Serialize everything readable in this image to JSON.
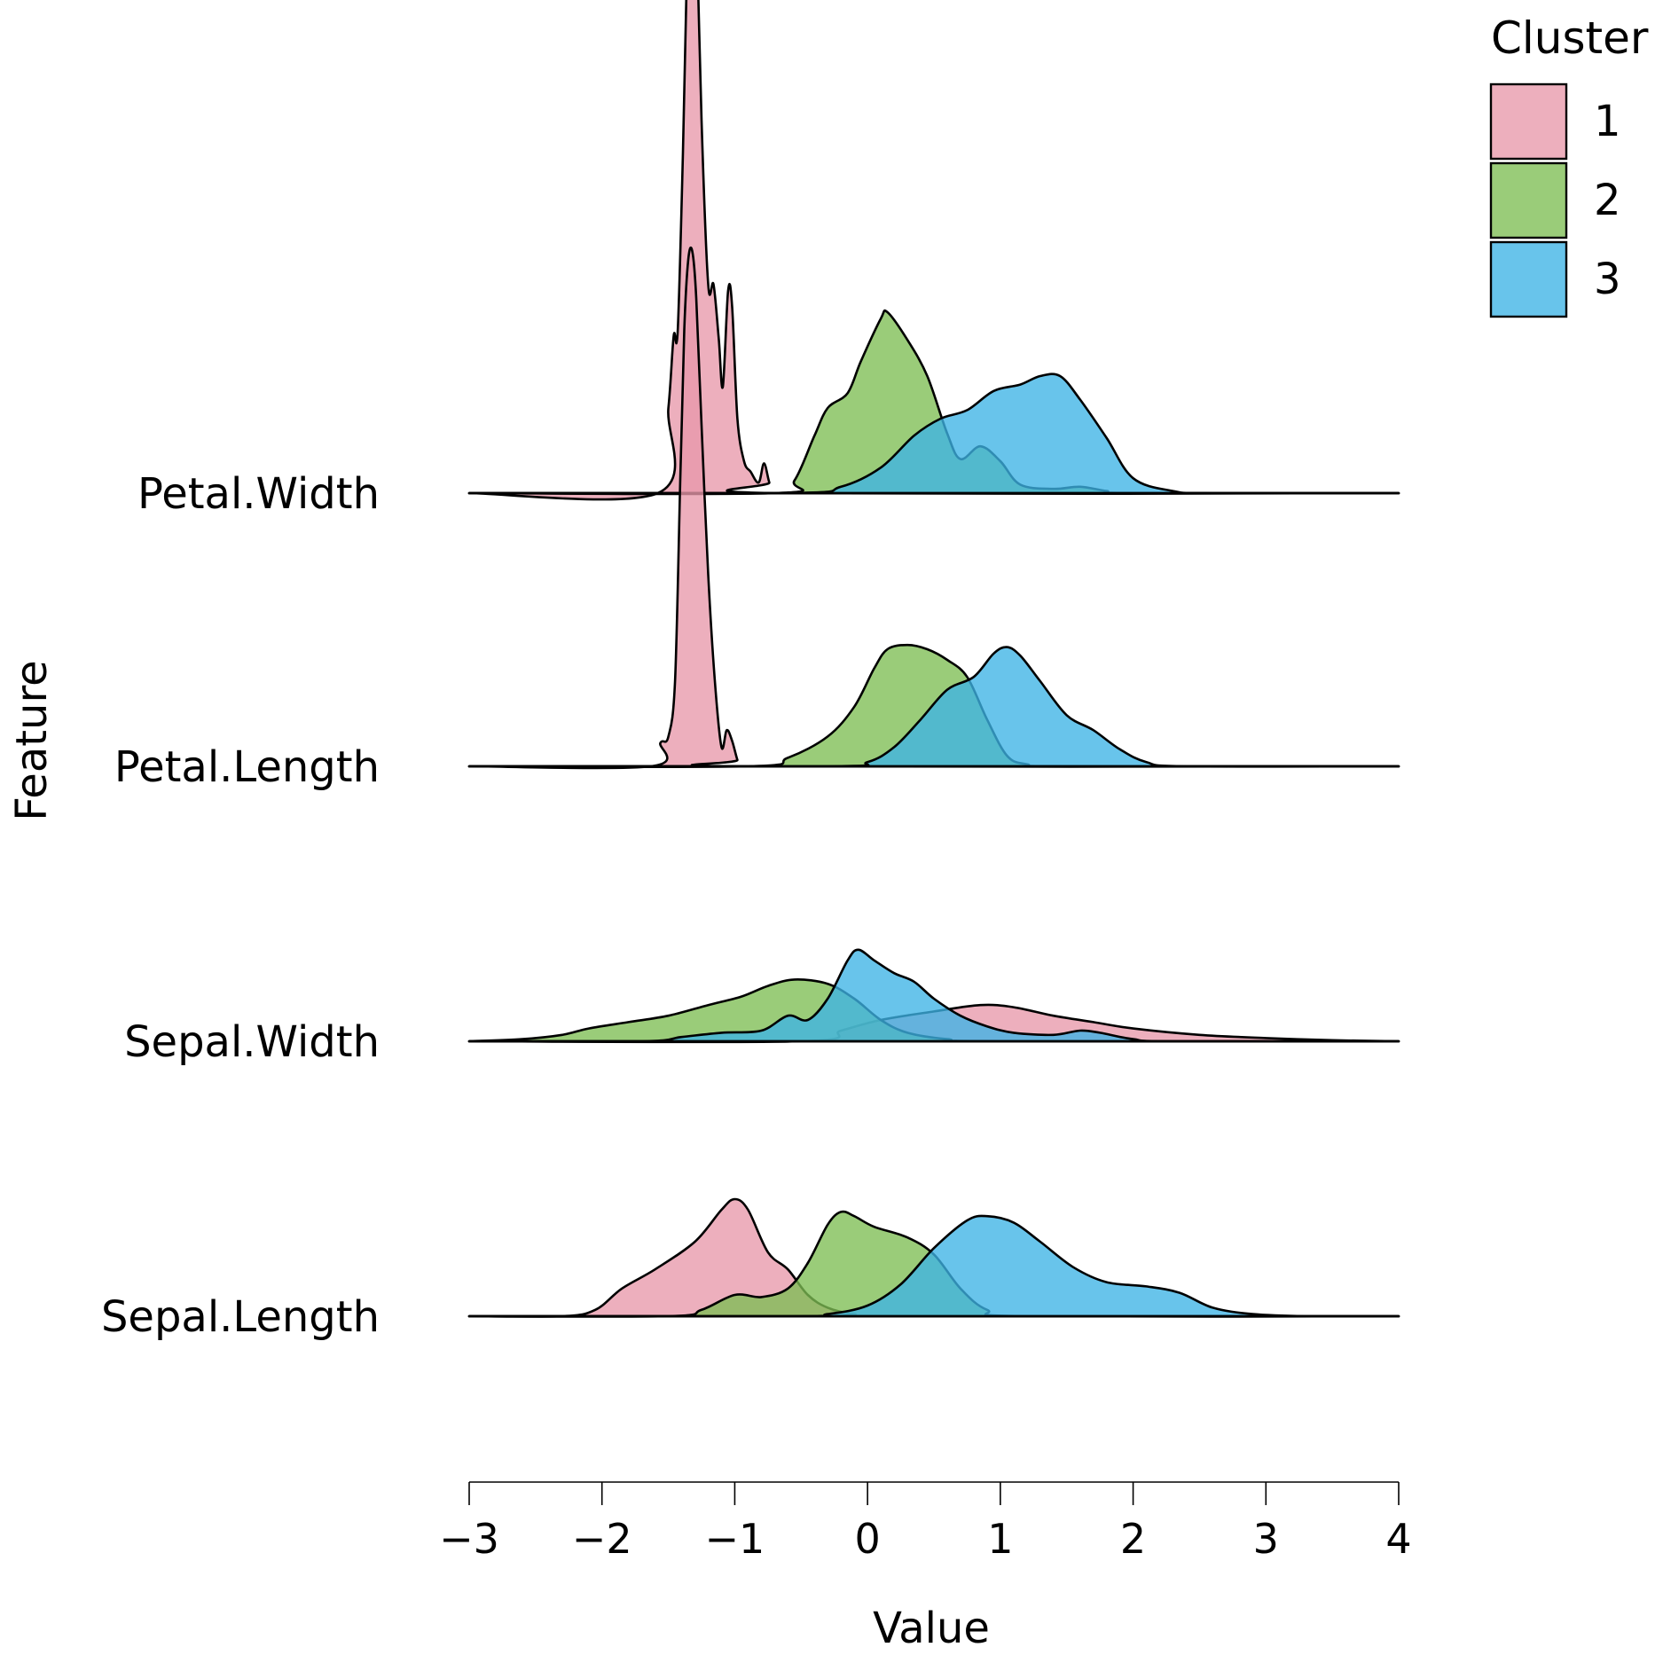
{
  "chart_data": {
    "type": "ridgeline",
    "xlabel": "Value",
    "ylabel": "Feature",
    "xlim": [
      -3,
      4
    ],
    "x_ticks": [
      -3,
      -2,
      -1,
      0,
      1,
      2,
      3,
      4
    ],
    "x_tick_labels": [
      "−3",
      "−2",
      "−1",
      "0",
      "1",
      "2",
      "3",
      "4"
    ],
    "legend": {
      "title": "Cluster",
      "position": "top-right",
      "entries": [
        {
          "label": "1",
          "color": "#E899AB"
        },
        {
          "label": "2",
          "color": "#7DBE53"
        },
        {
          "label": "3",
          "color": "#3EB4E6"
        }
      ]
    },
    "features": [
      {
        "name": "Sepal.Length",
        "series": [
          {
            "cluster": "1",
            "points": [
              [
                -3.0,
                0
              ],
              [
                -2.3,
                0
              ],
              [
                -2.05,
                0.03
              ],
              [
                -1.85,
                0.13
              ],
              [
                -1.6,
                0.22
              ],
              [
                -1.3,
                0.35
              ],
              [
                -1.1,
                0.5
              ],
              [
                -1.0,
                0.55
              ],
              [
                -0.9,
                0.5
              ],
              [
                -0.75,
                0.3
              ],
              [
                -0.6,
                0.22
              ],
              [
                -0.45,
                0.1
              ],
              [
                -0.3,
                0.04
              ],
              [
                -0.1,
                0.01
              ],
              [
                0.2,
                0
              ],
              [
                4.0,
                0
              ]
            ]
          },
          {
            "cluster": "2",
            "points": [
              [
                -3.0,
                0
              ],
              [
                -1.5,
                0
              ],
              [
                -1.25,
                0.03
              ],
              [
                -1.0,
                0.1
              ],
              [
                -0.8,
                0.09
              ],
              [
                -0.6,
                0.13
              ],
              [
                -0.45,
                0.25
              ],
              [
                -0.3,
                0.43
              ],
              [
                -0.2,
                0.49
              ],
              [
                -0.1,
                0.47
              ],
              [
                0.05,
                0.42
              ],
              [
                0.3,
                0.37
              ],
              [
                0.5,
                0.29
              ],
              [
                0.7,
                0.13
              ],
              [
                0.9,
                0.03
              ],
              [
                1.2,
                0
              ],
              [
                4.0,
                0
              ]
            ]
          },
          {
            "cluster": "3",
            "points": [
              [
                -3.0,
                0
              ],
              [
                -0.6,
                0
              ],
              [
                -0.3,
                0.01
              ],
              [
                0.0,
                0.05
              ],
              [
                0.25,
                0.15
              ],
              [
                0.5,
                0.32
              ],
              [
                0.75,
                0.45
              ],
              [
                0.9,
                0.47
              ],
              [
                1.1,
                0.44
              ],
              [
                1.3,
                0.35
              ],
              [
                1.55,
                0.23
              ],
              [
                1.8,
                0.16
              ],
              [
                2.1,
                0.14
              ],
              [
                2.35,
                0.11
              ],
              [
                2.6,
                0.04
              ],
              [
                2.9,
                0.01
              ],
              [
                3.3,
                0
              ],
              [
                4.0,
                0
              ]
            ]
          }
        ]
      },
      {
        "name": "Sepal.Width",
        "series": [
          {
            "cluster": "1",
            "points": [
              [
                -3.0,
                0
              ],
              [
                -0.5,
                0
              ],
              [
                -0.2,
                0.05
              ],
              [
                0.1,
                0.1
              ],
              [
                0.5,
                0.14
              ],
              [
                0.85,
                0.17
              ],
              [
                1.1,
                0.16
              ],
              [
                1.4,
                0.12
              ],
              [
                1.7,
                0.09
              ],
              [
                2.0,
                0.06
              ],
              [
                2.5,
                0.03
              ],
              [
                3.0,
                0.015
              ],
              [
                3.5,
                0.005
              ],
              [
                4.0,
                0
              ]
            ]
          },
          {
            "cluster": "2",
            "points": [
              [
                -3.0,
                0
              ],
              [
                -2.6,
                0.01
              ],
              [
                -2.3,
                0.03
              ],
              [
                -2.1,
                0.06
              ],
              [
                -1.8,
                0.09
              ],
              [
                -1.5,
                0.12
              ],
              [
                -1.2,
                0.17
              ],
              [
                -0.95,
                0.21
              ],
              [
                -0.75,
                0.26
              ],
              [
                -0.55,
                0.29
              ],
              [
                -0.3,
                0.27
              ],
              [
                -0.1,
                0.2
              ],
              [
                0.1,
                0.1
              ],
              [
                0.3,
                0.04
              ],
              [
                0.6,
                0.01
              ],
              [
                1.0,
                0
              ],
              [
                4.0,
                0
              ]
            ]
          },
          {
            "cluster": "3",
            "points": [
              [
                -3.0,
                0
              ],
              [
                -1.7,
                0
              ],
              [
                -1.4,
                0.02
              ],
              [
                -1.1,
                0.04
              ],
              [
                -0.8,
                0.05
              ],
              [
                -0.6,
                0.12
              ],
              [
                -0.45,
                0.1
              ],
              [
                -0.3,
                0.2
              ],
              [
                -0.15,
                0.38
              ],
              [
                -0.07,
                0.43
              ],
              [
                0.05,
                0.38
              ],
              [
                0.2,
                0.32
              ],
              [
                0.35,
                0.28
              ],
              [
                0.5,
                0.2
              ],
              [
                0.7,
                0.12
              ],
              [
                0.9,
                0.07
              ],
              [
                1.1,
                0.04
              ],
              [
                1.4,
                0.03
              ],
              [
                1.6,
                0.05
              ],
              [
                1.75,
                0.04
              ],
              [
                2.0,
                0.01
              ],
              [
                2.3,
                0
              ],
              [
                4.0,
                0
              ]
            ]
          }
        ]
      },
      {
        "name": "Petal.Length",
        "series": [
          {
            "cluster": "1",
            "points": [
              [
                -3.0,
                0
              ],
              [
                -1.63,
                0
              ],
              [
                -1.56,
                0.11
              ],
              [
                -1.5,
                0.14
              ],
              [
                -1.45,
                0.4
              ],
              [
                -1.41,
                1.35
              ],
              [
                -1.38,
                2.05
              ],
              [
                -1.35,
                2.38
              ],
              [
                -1.32,
                2.42
              ],
              [
                -1.29,
                2.2
              ],
              [
                -1.25,
                1.6
              ],
              [
                -1.2,
                0.9
              ],
              [
                -1.15,
                0.4
              ],
              [
                -1.1,
                0.09
              ],
              [
                -1.06,
                0.17
              ],
              [
                -1.02,
                0.12
              ],
              [
                -0.98,
                0.03
              ],
              [
                -0.95,
                0
              ],
              [
                4.0,
                0
              ]
            ]
          },
          {
            "cluster": "2",
            "points": [
              [
                -3.0,
                0
              ],
              [
                -0.9,
                0
              ],
              [
                -0.6,
                0.04
              ],
              [
                -0.3,
                0.14
              ],
              [
                -0.1,
                0.28
              ],
              [
                0.05,
                0.46
              ],
              [
                0.15,
                0.55
              ],
              [
                0.3,
                0.57
              ],
              [
                0.45,
                0.55
              ],
              [
                0.6,
                0.5
              ],
              [
                0.75,
                0.42
              ],
              [
                0.9,
                0.22
              ],
              [
                1.05,
                0.05
              ],
              [
                1.2,
                0.01
              ],
              [
                1.5,
                0
              ],
              [
                4.0,
                0
              ]
            ]
          },
          {
            "cluster": "3",
            "points": [
              [
                -3.0,
                0
              ],
              [
                -0.3,
                0
              ],
              [
                0.0,
                0.02
              ],
              [
                0.2,
                0.09
              ],
              [
                0.4,
                0.22
              ],
              [
                0.6,
                0.36
              ],
              [
                0.8,
                0.42
              ],
              [
                0.95,
                0.53
              ],
              [
                1.05,
                0.56
              ],
              [
                1.15,
                0.52
              ],
              [
                1.3,
                0.4
              ],
              [
                1.5,
                0.24
              ],
              [
                1.7,
                0.17
              ],
              [
                1.9,
                0.08
              ],
              [
                2.1,
                0.02
              ],
              [
                2.4,
                0
              ],
              [
                4.0,
                0
              ]
            ]
          }
        ]
      },
      {
        "name": "Petal.Width",
        "series": [
          {
            "cluster": "1",
            "points": [
              [
                -3.0,
                0
              ],
              [
                -1.58,
                0
              ],
              [
                -1.5,
                0.4
              ],
              [
                -1.46,
                0.74
              ],
              [
                -1.43,
                0.76
              ],
              [
                -1.39,
                1.6
              ],
              [
                -1.35,
                2.75
              ],
              [
                -1.32,
                3.18
              ],
              [
                -1.29,
                2.72
              ],
              [
                -1.25,
                1.75
              ],
              [
                -1.2,
                0.98
              ],
              [
                -1.16,
                0.98
              ],
              [
                -1.12,
                0.72
              ],
              [
                -1.09,
                0.5
              ],
              [
                -1.05,
                0.95
              ],
              [
                -1.02,
                0.88
              ],
              [
                -0.98,
                0.35
              ],
              [
                -0.93,
                0.15
              ],
              [
                -0.88,
                0.1
              ],
              [
                -0.82,
                0.05
              ],
              [
                -0.78,
                0.14
              ],
              [
                -0.74,
                0.05
              ],
              [
                -0.7,
                0
              ],
              [
                4.0,
                0
              ]
            ]
          },
          {
            "cluster": "2",
            "points": [
              [
                -3.0,
                0
              ],
              [
                -0.7,
                0
              ],
              [
                -0.55,
                0.06
              ],
              [
                -0.4,
                0.27
              ],
              [
                -0.3,
                0.4
              ],
              [
                -0.15,
                0.47
              ],
              [
                -0.05,
                0.62
              ],
              [
                0.1,
                0.82
              ],
              [
                0.15,
                0.85
              ],
              [
                0.3,
                0.72
              ],
              [
                0.45,
                0.55
              ],
              [
                0.6,
                0.28
              ],
              [
                0.7,
                0.16
              ],
              [
                0.85,
                0.22
              ],
              [
                1.0,
                0.15
              ],
              [
                1.15,
                0.04
              ],
              [
                1.4,
                0.02
              ],
              [
                1.6,
                0.03
              ],
              [
                1.8,
                0.01
              ],
              [
                2.0,
                0
              ],
              [
                4.0,
                0
              ]
            ]
          },
          {
            "cluster": "3",
            "points": [
              [
                -3.0,
                0
              ],
              [
                -0.6,
                0
              ],
              [
                -0.2,
                0.03
              ],
              [
                0.1,
                0.12
              ],
              [
                0.35,
                0.27
              ],
              [
                0.55,
                0.35
              ],
              [
                0.75,
                0.39
              ],
              [
                0.95,
                0.48
              ],
              [
                1.15,
                0.51
              ],
              [
                1.3,
                0.55
              ],
              [
                1.45,
                0.55
              ],
              [
                1.6,
                0.44
              ],
              [
                1.8,
                0.26
              ],
              [
                2.0,
                0.07
              ],
              [
                2.3,
                0.01
              ],
              [
                2.6,
                0
              ],
              [
                4.0,
                0
              ]
            ]
          }
        ]
      }
    ]
  }
}
